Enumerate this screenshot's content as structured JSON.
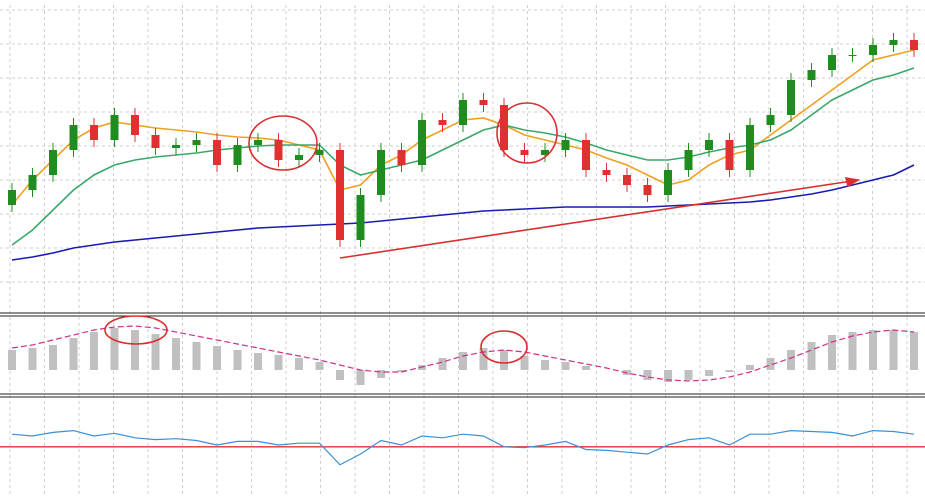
{
  "chart_data": [
    {
      "type": "candlestick",
      "up_color": "#1e8c1e",
      "down_color": "#e03030",
      "ylim": [
        -8,
        295
      ],
      "open": [
        95,
        110,
        125,
        150,
        175,
        160,
        185,
        165,
        152,
        155,
        160,
        135,
        155,
        160,
        140,
        145,
        150,
        60,
        105,
        150,
        135,
        180,
        175,
        200,
        195,
        150,
        145,
        150,
        160,
        130,
        125,
        115,
        105,
        130,
        150,
        160,
        130,
        175,
        185,
        220,
        230,
        245,
        245,
        255,
        260
      ],
      "high": [
        117,
        132,
        157,
        182,
        182,
        192,
        192,
        172,
        162,
        167,
        167,
        162,
        167,
        167,
        152,
        157,
        157,
        112,
        157,
        157,
        187,
        187,
        207,
        207,
        202,
        157,
        157,
        167,
        167,
        137,
        132,
        122,
        137,
        157,
        167,
        167,
        182,
        192,
        227,
        237,
        252,
        252,
        262,
        267,
        267
      ],
      "low": [
        88,
        103,
        118,
        143,
        153,
        153,
        158,
        145,
        145,
        148,
        128,
        128,
        148,
        133,
        133,
        138,
        53,
        53,
        98,
        128,
        128,
        168,
        168,
        188,
        143,
        138,
        138,
        143,
        123,
        118,
        108,
        98,
        98,
        123,
        143,
        123,
        123,
        168,
        178,
        213,
        223,
        238,
        238,
        248,
        243
      ],
      "close": [
        110,
        125,
        150,
        175,
        160,
        185,
        165,
        152,
        155,
        160,
        135,
        155,
        160,
        140,
        145,
        150,
        60,
        105,
        150,
        135,
        180,
        175,
        200,
        195,
        150,
        145,
        150,
        160,
        130,
        125,
        115,
        105,
        130,
        150,
        160,
        130,
        175,
        185,
        220,
        230,
        245,
        245,
        255,
        260,
        250
      ],
      "lines": [
        {
          "color": "#f0a020",
          "values": [
            95,
            120,
            140,
            160,
            172,
            178,
            175,
            172,
            170,
            168,
            165,
            163,
            162,
            160,
            155,
            150,
            110,
            115,
            135,
            145,
            160,
            170,
            180,
            182,
            175,
            165,
            160,
            155,
            150,
            142,
            135,
            125,
            115,
            120,
            135,
            145,
            150,
            165,
            180,
            195,
            210,
            225,
            240,
            245,
            250
          ]
        },
        {
          "color": "#3aa86a",
          "values": [
            55,
            70,
            90,
            110,
            125,
            135,
            140,
            143,
            145,
            147,
            150,
            152,
            154,
            155,
            155,
            155,
            135,
            125,
            130,
            135,
            140,
            150,
            160,
            170,
            175,
            170,
            167,
            163,
            157,
            150,
            145,
            140,
            140,
            143,
            148,
            152,
            155,
            160,
            170,
            185,
            200,
            210,
            220,
            225,
            232
          ]
        },
        {
          "color": "#1a1ab0",
          "values": [
            40,
            43,
            47,
            52,
            55,
            58,
            60,
            62,
            64,
            66,
            68,
            70,
            72,
            73,
            74,
            75,
            76,
            77,
            79,
            81,
            83,
            85,
            87,
            89,
            90,
            91,
            92,
            93,
            93,
            93,
            93,
            93,
            94,
            95,
            96,
            97,
            98,
            100,
            103,
            106,
            110,
            115,
            120,
            125,
            135
          ]
        }
      ]
    },
    {
      "type": "macd",
      "ylim": [
        -20,
        50
      ],
      "histogram": {
        "color": "#c0c0c0",
        "values": [
          20,
          22,
          25,
          32,
          38,
          42,
          40,
          36,
          32,
          28,
          24,
          20,
          17,
          15,
          12,
          8,
          -10,
          -15,
          -8,
          -2,
          5,
          12,
          18,
          22,
          20,
          14,
          10,
          8,
          4,
          0,
          -5,
          -10,
          -12,
          -10,
          -6,
          -2,
          5,
          12,
          20,
          28,
          35,
          38,
          40,
          40,
          38
        ]
      },
      "signal": {
        "color": "#d0308a",
        "values": [
          22,
          25,
          30,
          35,
          40,
          43,
          44,
          42,
          38,
          34,
          30,
          26,
          22,
          18,
          14,
          10,
          5,
          0,
          -2,
          -2,
          3,
          8,
          14,
          18,
          20,
          18,
          14,
          10,
          6,
          2,
          -3,
          -7,
          -10,
          -11,
          -10,
          -7,
          -2,
          5,
          12,
          20,
          28,
          34,
          38,
          40,
          38
        ]
      }
    },
    {
      "type": "line",
      "ylim": [
        0,
        100
      ],
      "series": [
        {
          "color": "#3a90d8",
          "values": [
            62,
            60,
            64,
            66,
            60,
            63,
            58,
            56,
            57,
            55,
            50,
            54,
            54,
            50,
            52,
            52,
            28,
            40,
            55,
            50,
            60,
            58,
            62,
            60,
            48,
            47,
            50,
            54,
            45,
            44,
            42,
            40,
            50,
            56,
            58,
            50,
            62,
            62,
            66,
            65,
            64,
            60,
            66,
            65,
            62
          ]
        }
      ],
      "level": {
        "value": 48,
        "color": "#e03030"
      }
    }
  ]
}
